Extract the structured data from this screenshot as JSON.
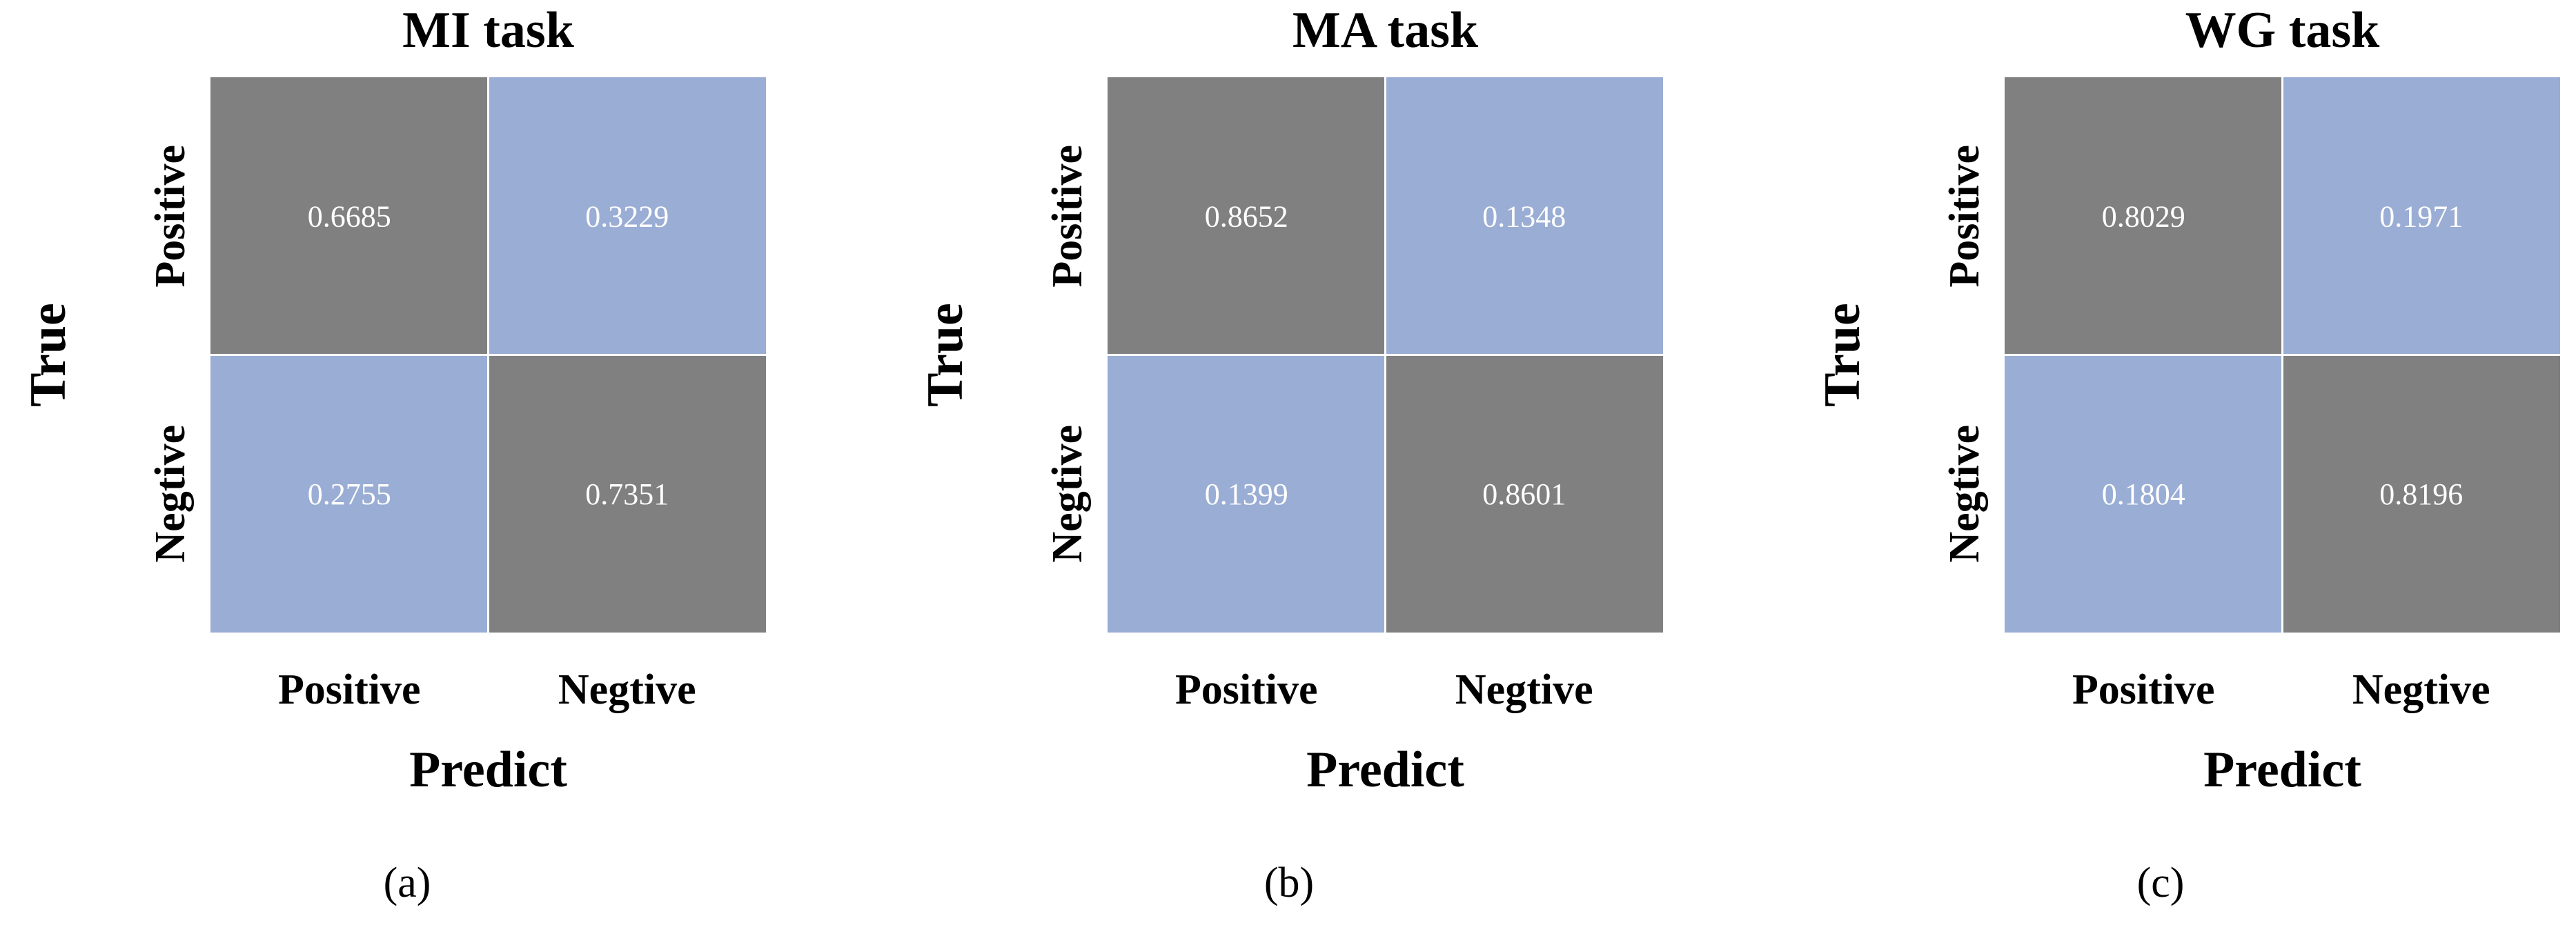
{
  "chart_data": [
    {
      "type": "heatmap",
      "title": "MI task",
      "xlabel": "Predict",
      "ylabel": "True",
      "x_categories": [
        "Positive",
        "Negtive"
      ],
      "y_categories": [
        "Positive",
        "Negtive"
      ],
      "values": [
        [
          0.6685,
          0.3229
        ],
        [
          0.2755,
          0.7351
        ]
      ],
      "value_labels": [
        [
          "0.6685",
          "0.3229"
        ],
        [
          "0.2755",
          "0.7351"
        ]
      ],
      "caption": "(a)"
    },
    {
      "type": "heatmap",
      "title": "MA task",
      "xlabel": "Predict",
      "ylabel": "True",
      "x_categories": [
        "Positive",
        "Negtive"
      ],
      "y_categories": [
        "Positive",
        "Negtive"
      ],
      "values": [
        [
          0.8652,
          0.1348
        ],
        [
          0.1399,
          0.8601
        ]
      ],
      "value_labels": [
        [
          "0.8652",
          "0.1348"
        ],
        [
          "0.1399",
          "0.8601"
        ]
      ],
      "caption": "(b)"
    },
    {
      "type": "heatmap",
      "title": "WG task",
      "xlabel": "Predict",
      "ylabel": "True",
      "x_categories": [
        "Positive",
        "Negtive"
      ],
      "y_categories": [
        "Positive",
        "Negtive"
      ],
      "values": [
        [
          0.8029,
          0.1971
        ],
        [
          0.1804,
          0.8196
        ]
      ],
      "value_labels": [
        [
          "0.8029",
          "0.1971"
        ],
        [
          "0.1804",
          "0.8196"
        ]
      ],
      "caption": "(c)"
    }
  ],
  "colors": {
    "diagonal": "#808080",
    "off_diagonal": "#9aadd4",
    "cell_text": "#ffffff",
    "grid_line": "#ffffff"
  }
}
